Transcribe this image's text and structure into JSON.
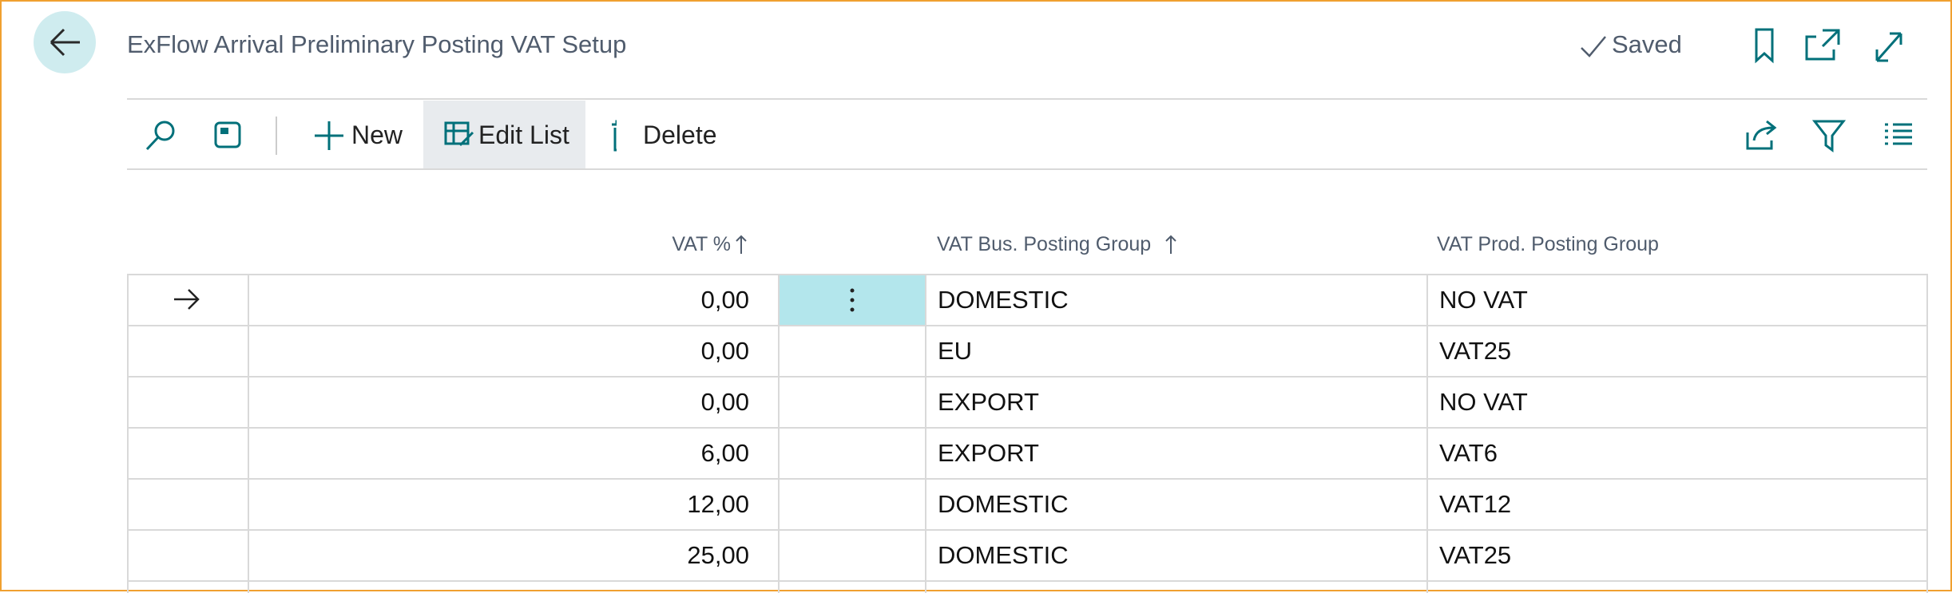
{
  "header": {
    "title": "ExFlow Arrival Preliminary Posting VAT Setup",
    "status": "Saved"
  },
  "toolbar": {
    "new": "New",
    "edit_list": "Edit List",
    "delete": "Delete"
  },
  "table": {
    "columns": [
      "VAT %",
      "VAT Bus. Posting Group",
      "VAT Prod. Posting Group"
    ],
    "rows": [
      [
        "0,00",
        "DOMESTIC",
        "NO VAT"
      ],
      [
        "0,00",
        "EU",
        "VAT25"
      ],
      [
        "0,00",
        "EXPORT",
        "NO VAT"
      ],
      [
        "6,00",
        "EXPORT",
        "VAT6"
      ],
      [
        "12,00",
        "DOMESTIC",
        "VAT12"
      ],
      [
        "25,00",
        "DOMESTIC",
        "VAT25"
      ]
    ]
  }
}
